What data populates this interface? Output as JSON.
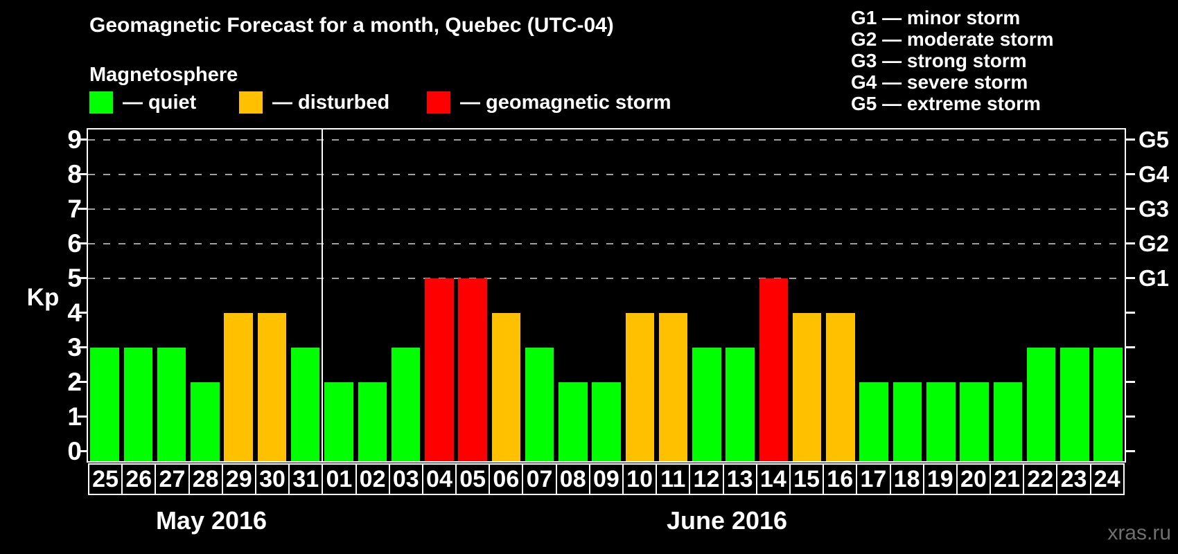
{
  "title": "Geomagnetic Forecast for a month, Quebec (UTC-04)",
  "legend": {
    "heading": "Magnetosphere",
    "items": [
      {
        "name": "quiet",
        "label": "— quiet",
        "color": "#00ff00"
      },
      {
        "name": "disturbed",
        "label": "— disturbed",
        "color": "#ffc000"
      },
      {
        "name": "storm",
        "label": "— geomagnetic storm",
        "color": "#ff0000"
      }
    ]
  },
  "storm_scale": {
    "lines": [
      "G1 — minor storm",
      "G2 — moderate storm",
      "G3 — strong storm",
      "G4 — severe storm",
      "G5 — extreme storm"
    ]
  },
  "watermark": "xras.ru",
  "chart_data": {
    "type": "bar",
    "title": "Geomagnetic Forecast for a month, Quebec (UTC-04)",
    "ylabel": "Kp",
    "ylim": [
      0,
      9
    ],
    "yticks": [
      0,
      1,
      2,
      3,
      4,
      5,
      6,
      7,
      8,
      9
    ],
    "gridlines_at": [
      5,
      6,
      7,
      8,
      9
    ],
    "grid": "dashed horizontal lines at storm levels only",
    "legend_position": "top",
    "right_axis": [
      {
        "kp": 5,
        "label": "G1"
      },
      {
        "kp": 6,
        "label": "G2"
      },
      {
        "kp": 7,
        "label": "G3"
      },
      {
        "kp": 8,
        "label": "G4"
      },
      {
        "kp": 9,
        "label": "G5"
      }
    ],
    "months": [
      {
        "label": "May 2016",
        "days": 7
      },
      {
        "label": "June 2016",
        "days": 24
      }
    ],
    "categories": [
      "25",
      "26",
      "27",
      "28",
      "29",
      "30",
      "31",
      "01",
      "02",
      "03",
      "04",
      "05",
      "06",
      "07",
      "08",
      "09",
      "10",
      "11",
      "12",
      "13",
      "14",
      "15",
      "16",
      "17",
      "18",
      "19",
      "20",
      "21",
      "22",
      "23",
      "24"
    ],
    "values": [
      3,
      3,
      3,
      2,
      4,
      4,
      3,
      2,
      2,
      3,
      5,
      5,
      4,
      3,
      2,
      2,
      4,
      4,
      3,
      3,
      5,
      4,
      4,
      2,
      2,
      2,
      2,
      2,
      3,
      3,
      3
    ],
    "statuses": [
      "quiet",
      "quiet",
      "quiet",
      "quiet",
      "disturbed",
      "disturbed",
      "quiet",
      "quiet",
      "quiet",
      "quiet",
      "storm",
      "storm",
      "disturbed",
      "quiet",
      "quiet",
      "quiet",
      "disturbed",
      "disturbed",
      "quiet",
      "quiet",
      "storm",
      "disturbed",
      "disturbed",
      "quiet",
      "quiet",
      "quiet",
      "quiet",
      "quiet",
      "quiet",
      "quiet",
      "quiet"
    ],
    "colors": {
      "quiet": "#00ff00",
      "disturbed": "#ffc000",
      "storm": "#ff0000"
    }
  }
}
